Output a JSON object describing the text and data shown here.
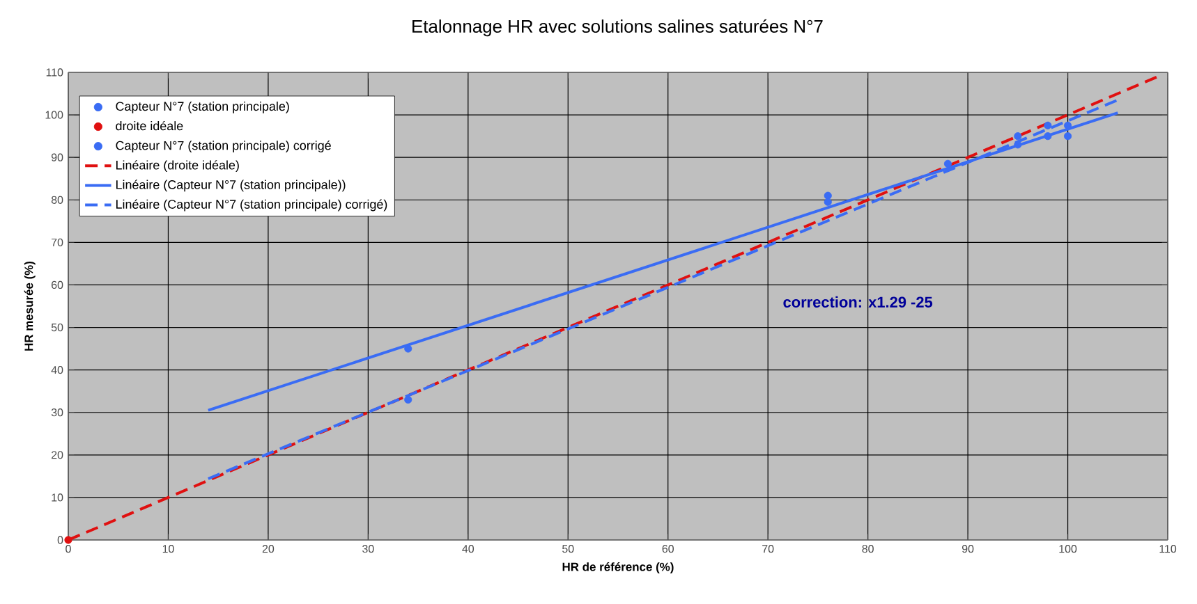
{
  "chart_data": {
    "type": "scatter",
    "title": "Etalonnage HR avec solutions salines saturées N°7",
    "xlabel": "HR de référence (%)",
    "ylabel": "HR mesurée (%)",
    "xlim": [
      0,
      110
    ],
    "ylim": [
      0,
      110
    ],
    "xticks": [
      0,
      10,
      20,
      30,
      40,
      50,
      60,
      70,
      80,
      90,
      100,
      110
    ],
    "yticks": [
      0,
      10,
      20,
      30,
      40,
      50,
      60,
      70,
      80,
      90,
      100,
      110
    ],
    "grid": true,
    "legend": "top left",
    "annotations": [
      "correction:  x1.29  -25"
    ],
    "series": [
      {
        "name": "Capteur N°7 (station principale)",
        "color": "#3a6cf4",
        "marker": "circle",
        "x": [
          34,
          76,
          88,
          95,
          98,
          100
        ],
        "values": [
          45,
          81,
          null,
          93,
          95,
          95
        ]
      },
      {
        "name": "droite idéale",
        "color": "#e01010",
        "marker": "circle",
        "x": [
          0
        ],
        "values": [
          0
        ]
      },
      {
        "name": "Capteur N°7 (station principale) corrigé",
        "color": "#3a6cf4",
        "marker": "circle",
        "x": [
          34,
          76,
          88,
          95,
          98,
          100
        ],
        "values": [
          33,
          79.5,
          88.5,
          95,
          97.5,
          97.5
        ]
      },
      {
        "name": "Linéaire (droite idéale)",
        "type": "line",
        "color": "#e01010",
        "marker": "none",
        "line_style": "dashed",
        "x": [
          0,
          109
        ],
        "values": [
          0,
          109
        ]
      },
      {
        "name": "Linéaire (Capteur N°7 (station principale))",
        "type": "line",
        "color": "#3a6cf4",
        "marker": "none",
        "line_style": "solid",
        "x": [
          14,
          105
        ],
        "values": [
          30.5,
          100.5
        ]
      },
      {
        "name": "Linéaire (Capteur N°7 (station principale) corrigé)",
        "type": "line",
        "color": "#3a6cf4",
        "marker": "none",
        "line_style": "dashed",
        "x": [
          14,
          105
        ],
        "values": [
          14.4,
          103.5
        ]
      }
    ]
  }
}
